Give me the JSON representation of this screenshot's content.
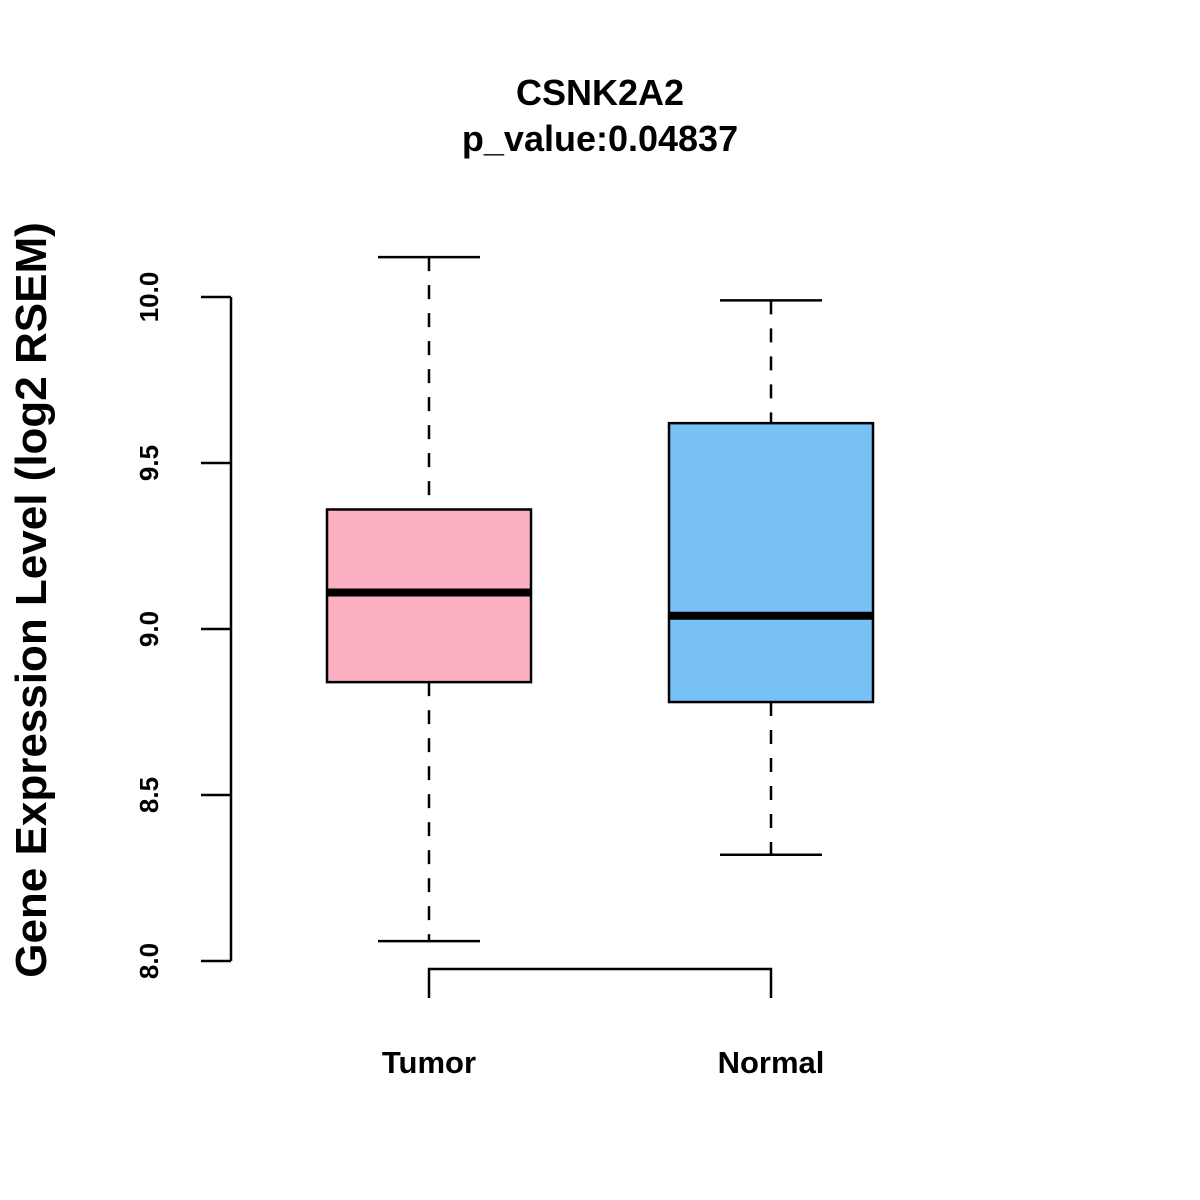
{
  "chart_data": {
    "type": "boxplot",
    "title": "CSNK2A2",
    "subtitle": "p_value:0.04837",
    "xlabel": "",
    "ylabel": "Gene Expression Level (log2 RSEM)",
    "ylim": [
      8.0,
      10.0
    ],
    "yticks": [
      "8.0",
      "8.5",
      "9.0",
      "9.5",
      "10.0"
    ],
    "ytick_values": [
      8.0,
      8.5,
      9.0,
      9.5,
      10.0
    ],
    "categories": [
      "Tumor",
      "Normal"
    ],
    "boxes": [
      {
        "name": "Tumor",
        "whisker_low": 8.06,
        "q1": 8.84,
        "median": 9.11,
        "q3": 9.36,
        "whisker_high": 10.12,
        "color": "#FBB1C2"
      },
      {
        "name": "Normal",
        "whisker_low": 8.32,
        "q1": 8.78,
        "median": 9.04,
        "q3": 9.62,
        "whisker_high": 9.99,
        "color": "#77C1F7"
      }
    ],
    "comparison_bracket": [
      "Tumor",
      "Normal"
    ],
    "grid": false
  }
}
